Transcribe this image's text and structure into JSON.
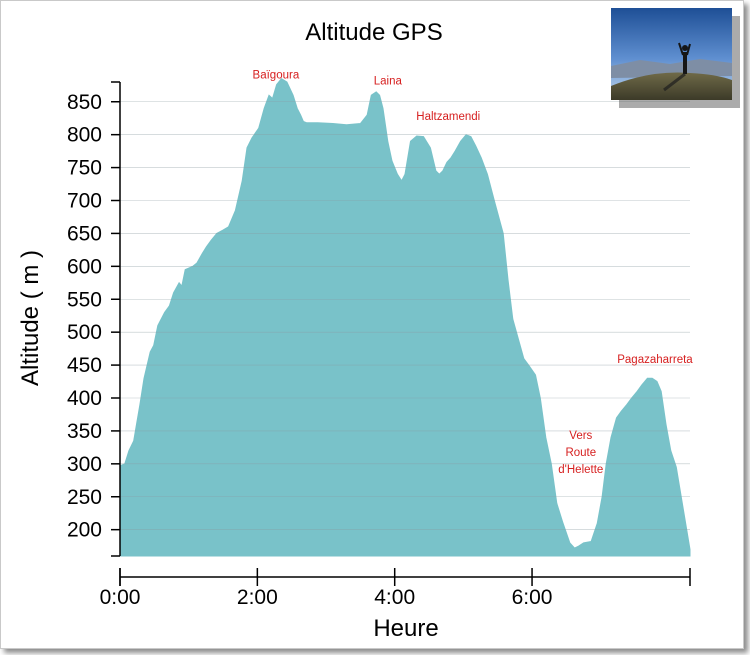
{
  "chart_data": {
    "type": "area",
    "title": "Altitude GPS",
    "xlabel": "Heure",
    "ylabel": "Altitude ( m )",
    "x_unit": "hours",
    "xlim": [
      0,
      8.3
    ],
    "ylim": [
      160,
      880
    ],
    "grid": true,
    "fill_color": "#79c2c9",
    "grid_color": "#8a9aa0",
    "annotation_color": "#d61f1f",
    "yticks": [
      200,
      250,
      300,
      350,
      400,
      450,
      500,
      550,
      600,
      650,
      700,
      750,
      800,
      850
    ],
    "xticks": [
      {
        "value": 0,
        "label": "0:00"
      },
      {
        "value": 2,
        "label": "2:00"
      },
      {
        "value": 4,
        "label": "4:00"
      },
      {
        "value": 6,
        "label": "6:00"
      }
    ],
    "annotations": [
      {
        "lines": [
          "Baïgoura"
        ],
        "x": 2.27,
        "y": 885
      },
      {
        "lines": [
          "Laina"
        ],
        "x": 3.9,
        "y": 876
      },
      {
        "lines": [
          "Haltzamendi"
        ],
        "x": 4.78,
        "y": 822
      },
      {
        "lines": [
          "Vers",
          "Route",
          "d'Helette"
        ],
        "x": 6.71,
        "y": 286
      },
      {
        "lines": [
          "Pagazaharreta"
        ],
        "x": 7.79,
        "y": 453
      }
    ],
    "x": [
      0,
      0.07,
      0.13,
      0.2,
      0.24,
      0.29,
      0.35,
      0.44,
      0.49,
      0.55,
      0.65,
      0.72,
      0.78,
      0.86,
      0.9,
      0.95,
      1.06,
      1.12,
      1.2,
      1.26,
      1.33,
      1.41,
      1.5,
      1.58,
      1.68,
      1.78,
      1.85,
      1.92,
      2.02,
      2.1,
      2.17,
      2.22,
      2.28,
      2.35,
      2.43,
      2.52,
      2.58,
      2.63,
      2.67,
      2.72,
      2.88,
      3.1,
      3.3,
      3.5,
      3.6,
      3.66,
      3.73,
      3.78,
      3.83,
      3.9,
      3.96,
      4.04,
      4.1,
      4.15,
      4.23,
      4.32,
      4.42,
      4.52,
      4.6,
      4.65,
      4.7,
      4.76,
      4.82,
      4.88,
      4.96,
      5.04,
      5.11,
      5.18,
      5.26,
      5.35,
      5.45,
      5.58,
      5.65,
      5.72,
      5.8,
      5.88,
      5.95,
      6.05,
      6.12,
      6.2,
      6.28,
      6.36,
      6.45,
      6.55,
      6.62,
      6.68,
      6.75,
      6.86,
      6.95,
      7.02,
      7.08,
      7.15,
      7.23,
      7.3,
      7.38,
      7.45,
      7.53,
      7.6,
      7.68,
      7.75,
      7.82,
      7.88,
      7.95,
      8.02,
      8.1,
      8.3
    ],
    "y": [
      297,
      300,
      320,
      335,
      360,
      390,
      430,
      470,
      480,
      510,
      530,
      540,
      560,
      575,
      570,
      595,
      600,
      605,
      620,
      630,
      640,
      650,
      655,
      660,
      685,
      730,
      780,
      795,
      810,
      840,
      860,
      855,
      876,
      885,
      880,
      860,
      840,
      830,
      820,
      818,
      818,
      817,
      815,
      817,
      830,
      860,
      865,
      860,
      840,
      790,
      760,
      740,
      730,
      740,
      790,
      798,
      797,
      780,
      745,
      740,
      745,
      758,
      765,
      775,
      790,
      800,
      797,
      783,
      765,
      740,
      700,
      650,
      580,
      520,
      490,
      460,
      450,
      435,
      400,
      340,
      300,
      240,
      210,
      180,
      172,
      175,
      180,
      182,
      210,
      250,
      300,
      340,
      370,
      380,
      390,
      400,
      410,
      420,
      430,
      430,
      425,
      410,
      360,
      320,
      295,
      170
    ]
  }
}
